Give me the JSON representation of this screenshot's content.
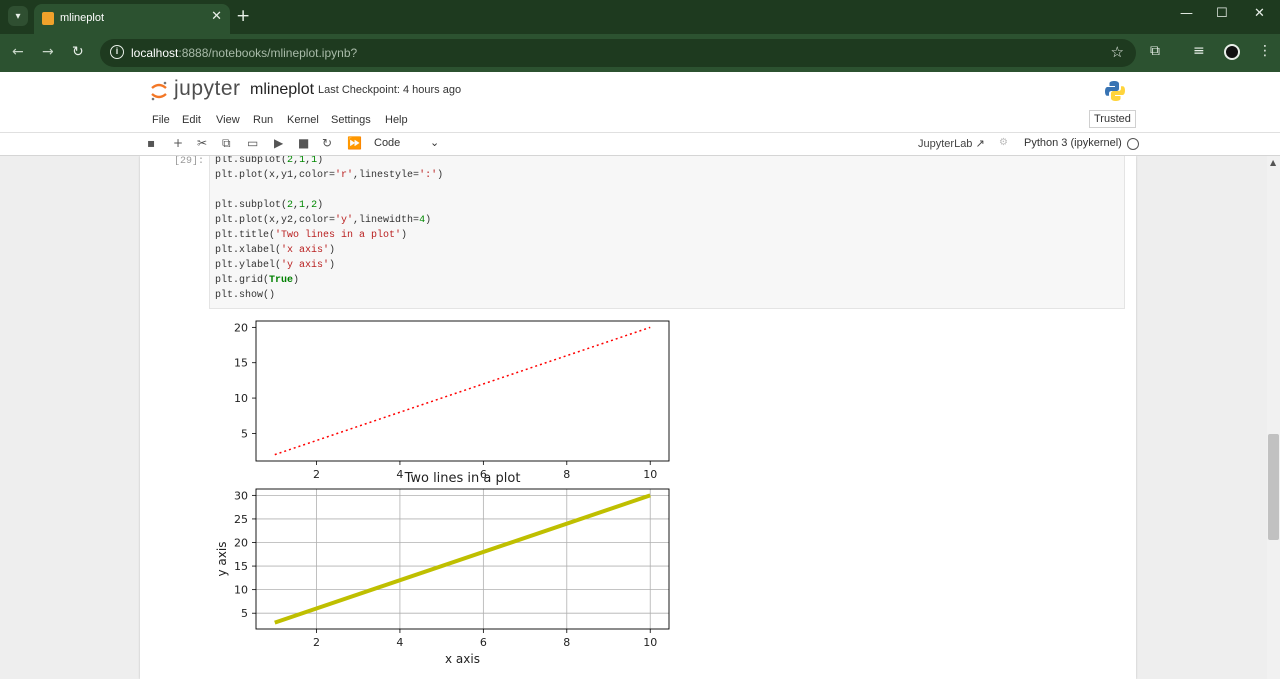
{
  "browser": {
    "tab_title": "mlineplot",
    "url_host": "localhost",
    "url_rest": ":8888/notebooks/mlineplot.ipynb?"
  },
  "jupyter": {
    "logo_text": "jupyter",
    "notebook_name": "mlineplot",
    "checkpoint": "Last Checkpoint: 4 hours ago",
    "menu": [
      "File",
      "Edit",
      "View",
      "Run",
      "Kernel",
      "Settings",
      "Help"
    ],
    "trusted": "Trusted",
    "cell_type": "Code",
    "jupyterlab_link": "JupyterLab",
    "kernel": "Python 3 (ipykernel)"
  },
  "cell": {
    "prompt": "[29]:"
  },
  "chart_data": [
    {
      "type": "line",
      "title": "",
      "xlabel": "",
      "ylabel": "",
      "x": [
        1,
        10
      ],
      "series": [
        {
          "values": [
            2,
            20
          ],
          "color": "#ff0000",
          "linestyle": "dotted"
        }
      ],
      "xlim": [
        0.55,
        10.45
      ],
      "ylim": [
        1.1,
        20.9
      ],
      "xticks": [
        "2",
        "4",
        "6",
        "8",
        "10"
      ],
      "yticks": [
        "5",
        "10",
        "15",
        "20"
      ],
      "grid": false
    },
    {
      "type": "line",
      "title": "Two lines in a plot",
      "xlabel": "x axis",
      "ylabel": "y axis",
      "x": [
        1,
        10
      ],
      "series": [
        {
          "values": [
            3,
            30
          ],
          "color": "#bfbf00",
          "linestyle": "solid"
        }
      ],
      "xlim": [
        0.55,
        10.45
      ],
      "ylim": [
        1.65,
        31.35
      ],
      "xticks": [
        "2",
        "4",
        "6",
        "8",
        "10"
      ],
      "yticks": [
        "5",
        "10",
        "15",
        "20",
        "25",
        "30"
      ],
      "grid": true
    }
  ]
}
